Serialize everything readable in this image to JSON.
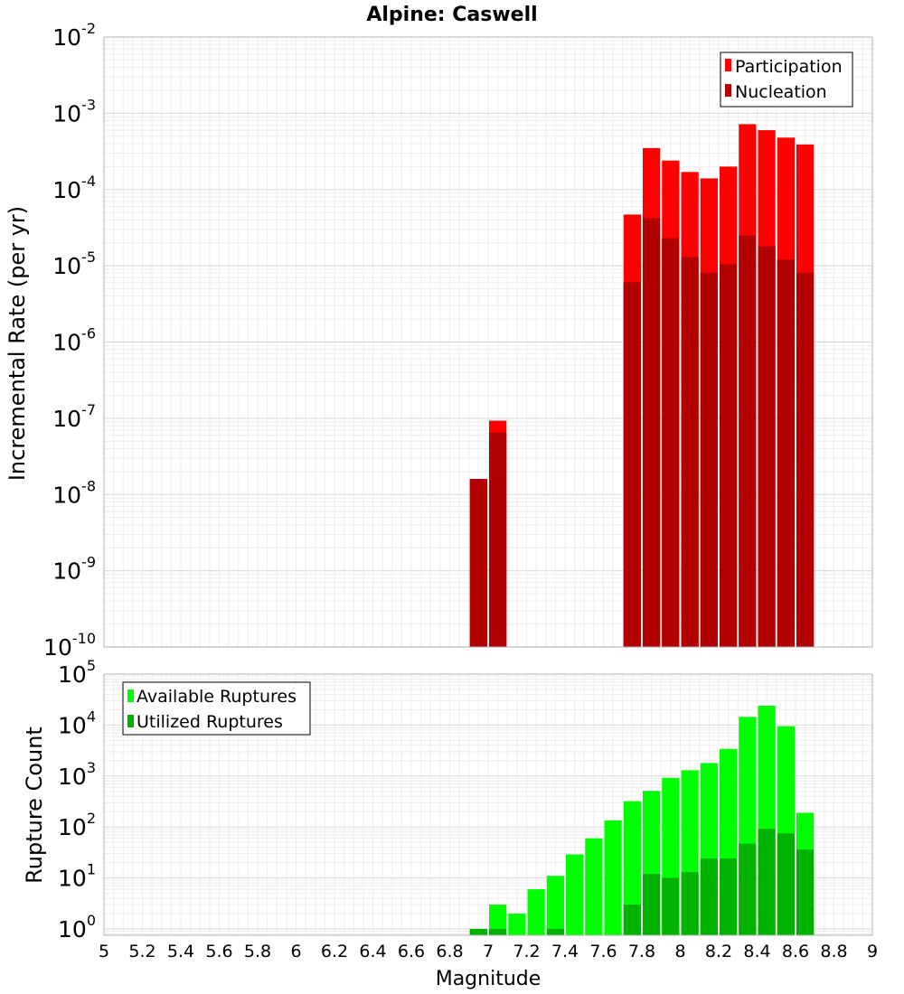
{
  "chart_data": {
    "type": "bar",
    "title": "Alpine: Caswell",
    "xlabel": "Magnitude",
    "xlim": [
      5,
      9
    ],
    "x_ticks": [
      "5",
      "5.2",
      "5.4",
      "5.6",
      "5.8",
      "6",
      "6.2",
      "6.4",
      "6.6",
      "6.8",
      "7",
      "7.2",
      "7.4",
      "7.6",
      "7.8",
      "8",
      "8.2",
      "8.4",
      "8.6",
      "8.8",
      "9"
    ],
    "panels": [
      {
        "ylabel": "Incremental Rate (per yr)",
        "yscale": "log",
        "ylim": [
          1e-10,
          0.01
        ],
        "y_tick_exponents": [
          "-10",
          "-9",
          "-8",
          "-7",
          "-6",
          "-5",
          "-4",
          "-3",
          "-2"
        ],
        "legend_position": "top-right",
        "series": [
          {
            "name": "Participation",
            "color": "#ff0000",
            "x": [
              6.95,
              7.05,
              7.75,
              7.85,
              7.95,
              8.05,
              8.15,
              8.25,
              8.35,
              8.45,
              8.55,
              8.65
            ],
            "values": [
              1.6e-08,
              9.3e-08,
              4.7e-05,
              0.00035,
              0.00024,
              0.00017,
              0.00014,
              0.0002,
              0.00072,
              0.0006,
              0.00048,
              0.00039
            ]
          },
          {
            "name": "Nucleation",
            "color": "#b20000",
            "x": [
              6.95,
              7.05,
              7.75,
              7.85,
              7.95,
              8.05,
              8.15,
              8.25,
              8.35,
              8.45,
              8.55,
              8.65
            ],
            "values": [
              1.6e-08,
              6.5e-08,
              6.1e-06,
              4.2e-05,
              2.3e-05,
              1.3e-05,
              8.1e-06,
              1.05e-05,
              2.5e-05,
              1.8e-05,
              1.2e-05,
              8.1e-06
            ]
          }
        ]
      },
      {
        "ylabel": "Rupture Count",
        "yscale": "log",
        "ylim": [
          0.75,
          100000.0
        ],
        "y_tick_exponents": [
          "0",
          "1",
          "2",
          "3",
          "4",
          "5"
        ],
        "legend_position": "top-left",
        "series": [
          {
            "name": "Available Ruptures",
            "color": "#00ff00",
            "x": [
              6.95,
              7.05,
              7.15,
              7.25,
              7.35,
              7.45,
              7.55,
              7.65,
              7.75,
              7.85,
              7.95,
              8.05,
              8.15,
              8.25,
              8.35,
              8.45,
              8.55,
              8.65
            ],
            "values": [
              1,
              3,
              2,
              6,
              11,
              29,
              60,
              135,
              320,
              510,
              920,
              1300,
              1800,
              3400,
              14500,
              24000,
              9500,
              190
            ]
          },
          {
            "name": "Utilized Ruptures",
            "color": "#00b200",
            "x": [
              6.95,
              7.05,
              7.15,
              7.25,
              7.35,
              7.45,
              7.55,
              7.65,
              7.75,
              7.85,
              7.95,
              8.05,
              8.15,
              8.25,
              8.35,
              8.45,
              8.55,
              8.65
            ],
            "values": [
              1,
              1,
              0,
              0,
              1,
              0,
              0,
              0,
              3,
              12,
              10,
              13,
              24,
              24,
              47,
              92,
              75,
              36
            ]
          }
        ]
      }
    ]
  }
}
